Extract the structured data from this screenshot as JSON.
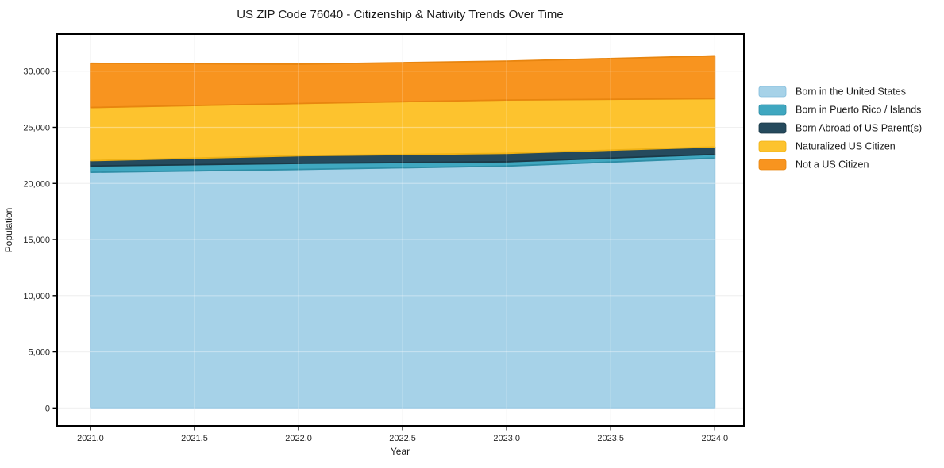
{
  "page": {
    "background": "#ffffff"
  },
  "chart_data": {
    "type": "area",
    "stacked": true,
    "title": "US ZIP Code 76040 - Citizenship & Nativity Trends Over Time",
    "xlabel": "Year",
    "ylabel": "Population",
    "x": [
      2021,
      2022,
      2023,
      2024
    ],
    "series": [
      {
        "name": "Born in the United States",
        "color": "#a6d2e8",
        "edge_color": "#84bedd",
        "values": [
          21000,
          21250,
          21550,
          22260
        ]
      },
      {
        "name": "Born in Puerto Rico / Islands",
        "color": "#3fa7c0",
        "edge_color": "#2e8ea6",
        "values": [
          550,
          540,
          380,
          330
        ]
      },
      {
        "name": "Born Abroad of US Parent(s)",
        "color": "#254a5d",
        "edge_color": "#1b3947",
        "values": [
          480,
          680,
          750,
          660
        ]
      },
      {
        "name": "Naturalized US Citizen",
        "color": "#fdc32e",
        "edge_color": "#efb113",
        "values": [
          4730,
          4650,
          4750,
          4300
        ]
      },
      {
        "name": "Not a US Citizen",
        "color": "#f8941f",
        "edge_color": "#e8850f",
        "values": [
          3940,
          3500,
          3460,
          3810
        ]
      }
    ],
    "totals": [
      30700,
      30620,
      30890,
      31360
    ],
    "xlim": [
      2020.84,
      2024.14
    ],
    "ylim": [
      -1600,
      33300
    ],
    "xticks": [
      {
        "value": 2021.0,
        "label": "2021.0"
      },
      {
        "value": 2021.5,
        "label": "2021.5"
      },
      {
        "value": 2022.0,
        "label": "2022.0"
      },
      {
        "value": 2022.5,
        "label": "2022.5"
      },
      {
        "value": 2023.0,
        "label": "2023.0"
      },
      {
        "value": 2023.5,
        "label": "2023.5"
      },
      {
        "value": 2024.0,
        "label": "2024.0"
      }
    ],
    "yticks": [
      {
        "value": 0,
        "label": "0"
      },
      {
        "value": 5000,
        "label": "5,000"
      },
      {
        "value": 10000,
        "label": "10,000"
      },
      {
        "value": 15000,
        "label": "15,000"
      },
      {
        "value": 20000,
        "label": "20,000"
      },
      {
        "value": 25000,
        "label": "25,000"
      },
      {
        "value": 30000,
        "label": "30,000"
      }
    ],
    "grid": true,
    "grid_color": "#e8e8e8",
    "grid_overlay_color": "rgba(255,255,255,0.35)",
    "axis_color": "#000000",
    "text_color": "#1a1a1a",
    "legend_position": "right-outside",
    "legend_frame": false
  }
}
